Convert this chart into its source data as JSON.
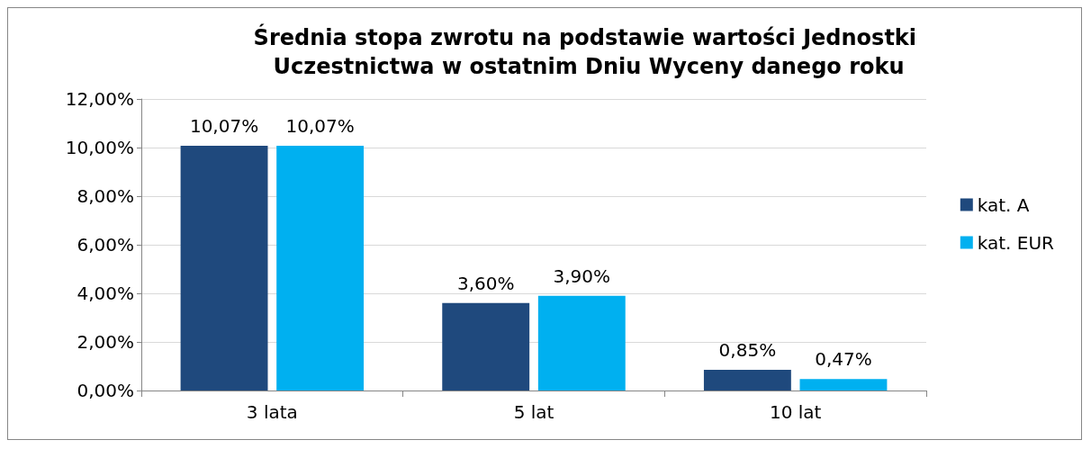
{
  "chart_data": {
    "type": "bar",
    "title": "Średnia stopa zwrotu na podstawie wartości Jednostki Uczestnictwa w ostatnim Dniu Wyceny danego roku",
    "categories": [
      "3 lata",
      "5 lat",
      "10 lat"
    ],
    "series": [
      {
        "name": "kat. A",
        "color": "#1f497d",
        "values": [
          10.07,
          3.6,
          0.85
        ],
        "value_labels": [
          "10,07%",
          "3,60%",
          "0,85%"
        ]
      },
      {
        "name": "kat. EUR",
        "color": "#00b0f0",
        "values": [
          10.07,
          3.9,
          0.47
        ],
        "value_labels": [
          "10,07%",
          "3,90%",
          "0,47%"
        ]
      }
    ],
    "ylim": [
      0,
      12
    ],
    "yticks": [
      {
        "value": 0,
        "label": "0,00%"
      },
      {
        "value": 2,
        "label": "2,00%"
      },
      {
        "value": 4,
        "label": "4,00%"
      },
      {
        "value": 6,
        "label": "6,00%"
      },
      {
        "value": 8,
        "label": "8,00%"
      },
      {
        "value": 10,
        "label": "10,00%"
      },
      {
        "value": 12,
        "label": "12,00%"
      }
    ],
    "grid": "y",
    "legend": "right"
  }
}
